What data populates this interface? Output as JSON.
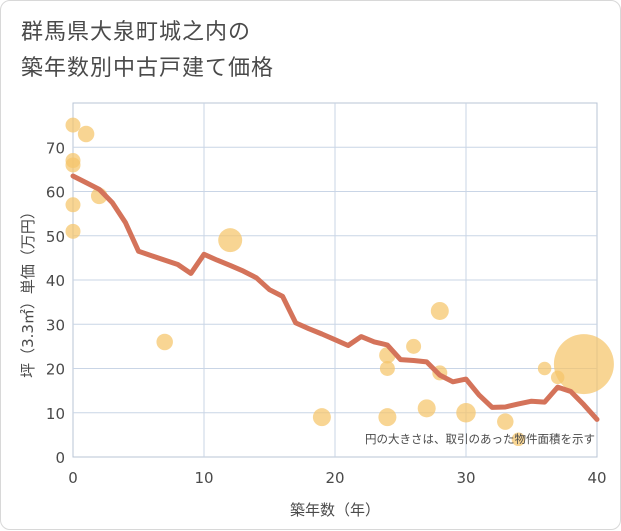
{
  "chart_data": {
    "type": "scatter",
    "title_line1": "群馬県大泉町城之内の",
    "title_line2": "築年数別中古戸建て価格",
    "xlabel": "築年数（年）",
    "ylabel": "坪（3.3㎡）単価（万円）",
    "xlim": [
      0,
      40
    ],
    "ylim": [
      0,
      80
    ],
    "xticks": [
      0,
      10,
      20,
      30,
      40
    ],
    "yticks": [
      0,
      10,
      20,
      30,
      40,
      50,
      60,
      70
    ],
    "note": "円の大きさは、取引のあった物件面積を示す",
    "colors": {
      "bubble": "#f5c56a",
      "line": "#d4735a",
      "grid": "#c9d5e6",
      "plot_border": "#b8c4d6"
    },
    "points": [
      {
        "x": 0,
        "y": 75,
        "size": 1
      },
      {
        "x": 0,
        "y": 67,
        "size": 1
      },
      {
        "x": 0,
        "y": 66,
        "size": 1
      },
      {
        "x": 0,
        "y": 57,
        "size": 1
      },
      {
        "x": 0,
        "y": 51,
        "size": 1
      },
      {
        "x": 1,
        "y": 73,
        "size": 1.1
      },
      {
        "x": 2,
        "y": 59,
        "size": 1.1
      },
      {
        "x": 7,
        "y": 26,
        "size": 1.1
      },
      {
        "x": 12,
        "y": 49,
        "size": 1.6
      },
      {
        "x": 19,
        "y": 9,
        "size": 1.2
      },
      {
        "x": 24,
        "y": 23,
        "size": 1.1
      },
      {
        "x": 24,
        "y": 20,
        "size": 1
      },
      {
        "x": 24,
        "y": 9,
        "size": 1.2
      },
      {
        "x": 26,
        "y": 25,
        "size": 1
      },
      {
        "x": 27,
        "y": 11,
        "size": 1.2
      },
      {
        "x": 28,
        "y": 33,
        "size": 1.2
      },
      {
        "x": 28,
        "y": 19,
        "size": 1
      },
      {
        "x": 30,
        "y": 10,
        "size": 1.3
      },
      {
        "x": 33,
        "y": 8,
        "size": 1.1
      },
      {
        "x": 34,
        "y": 4,
        "size": 0.9
      },
      {
        "x": 36,
        "y": 20,
        "size": 0.9
      },
      {
        "x": 37,
        "y": 18,
        "size": 0.9
      },
      {
        "x": 39,
        "y": 21,
        "size": 4.0
      }
    ],
    "trend": [
      {
        "x": 0,
        "y": 63.5
      },
      {
        "x": 1,
        "y": 62
      },
      {
        "x": 2,
        "y": 60.5
      },
      {
        "x": 3,
        "y": 57.5
      },
      {
        "x": 4,
        "y": 53
      },
      {
        "x": 5,
        "y": 46.5
      },
      {
        "x": 6,
        "y": 45.5
      },
      {
        "x": 7,
        "y": 44.5
      },
      {
        "x": 8,
        "y": 43.5
      },
      {
        "x": 9,
        "y": 41.5
      },
      {
        "x": 10,
        "y": 45.8
      },
      {
        "x": 11,
        "y": 44.5
      },
      {
        "x": 12,
        "y": 43.3
      },
      {
        "x": 13,
        "y": 42
      },
      {
        "x": 14,
        "y": 40.5
      },
      {
        "x": 15,
        "y": 37.8
      },
      {
        "x": 16,
        "y": 36.3
      },
      {
        "x": 17,
        "y": 30.3
      },
      {
        "x": 18,
        "y": 29
      },
      {
        "x": 19,
        "y": 27.8
      },
      {
        "x": 20,
        "y": 26.5
      },
      {
        "x": 21,
        "y": 25.2
      },
      {
        "x": 22,
        "y": 27.2
      },
      {
        "x": 23,
        "y": 26
      },
      {
        "x": 24,
        "y": 25.3
      },
      {
        "x": 25,
        "y": 22
      },
      {
        "x": 26,
        "y": 21.8
      },
      {
        "x": 27,
        "y": 21.5
      },
      {
        "x": 28,
        "y": 18.5
      },
      {
        "x": 29,
        "y": 17
      },
      {
        "x": 30,
        "y": 17.6
      },
      {
        "x": 31,
        "y": 14
      },
      {
        "x": 32,
        "y": 11.2
      },
      {
        "x": 33,
        "y": 11.3
      },
      {
        "x": 34,
        "y": 12
      },
      {
        "x": 35,
        "y": 12.6
      },
      {
        "x": 36,
        "y": 12.4
      },
      {
        "x": 37,
        "y": 15.8
      },
      {
        "x": 38,
        "y": 14.8
      },
      {
        "x": 39,
        "y": 11.8
      },
      {
        "x": 40,
        "y": 8.5
      }
    ]
  }
}
